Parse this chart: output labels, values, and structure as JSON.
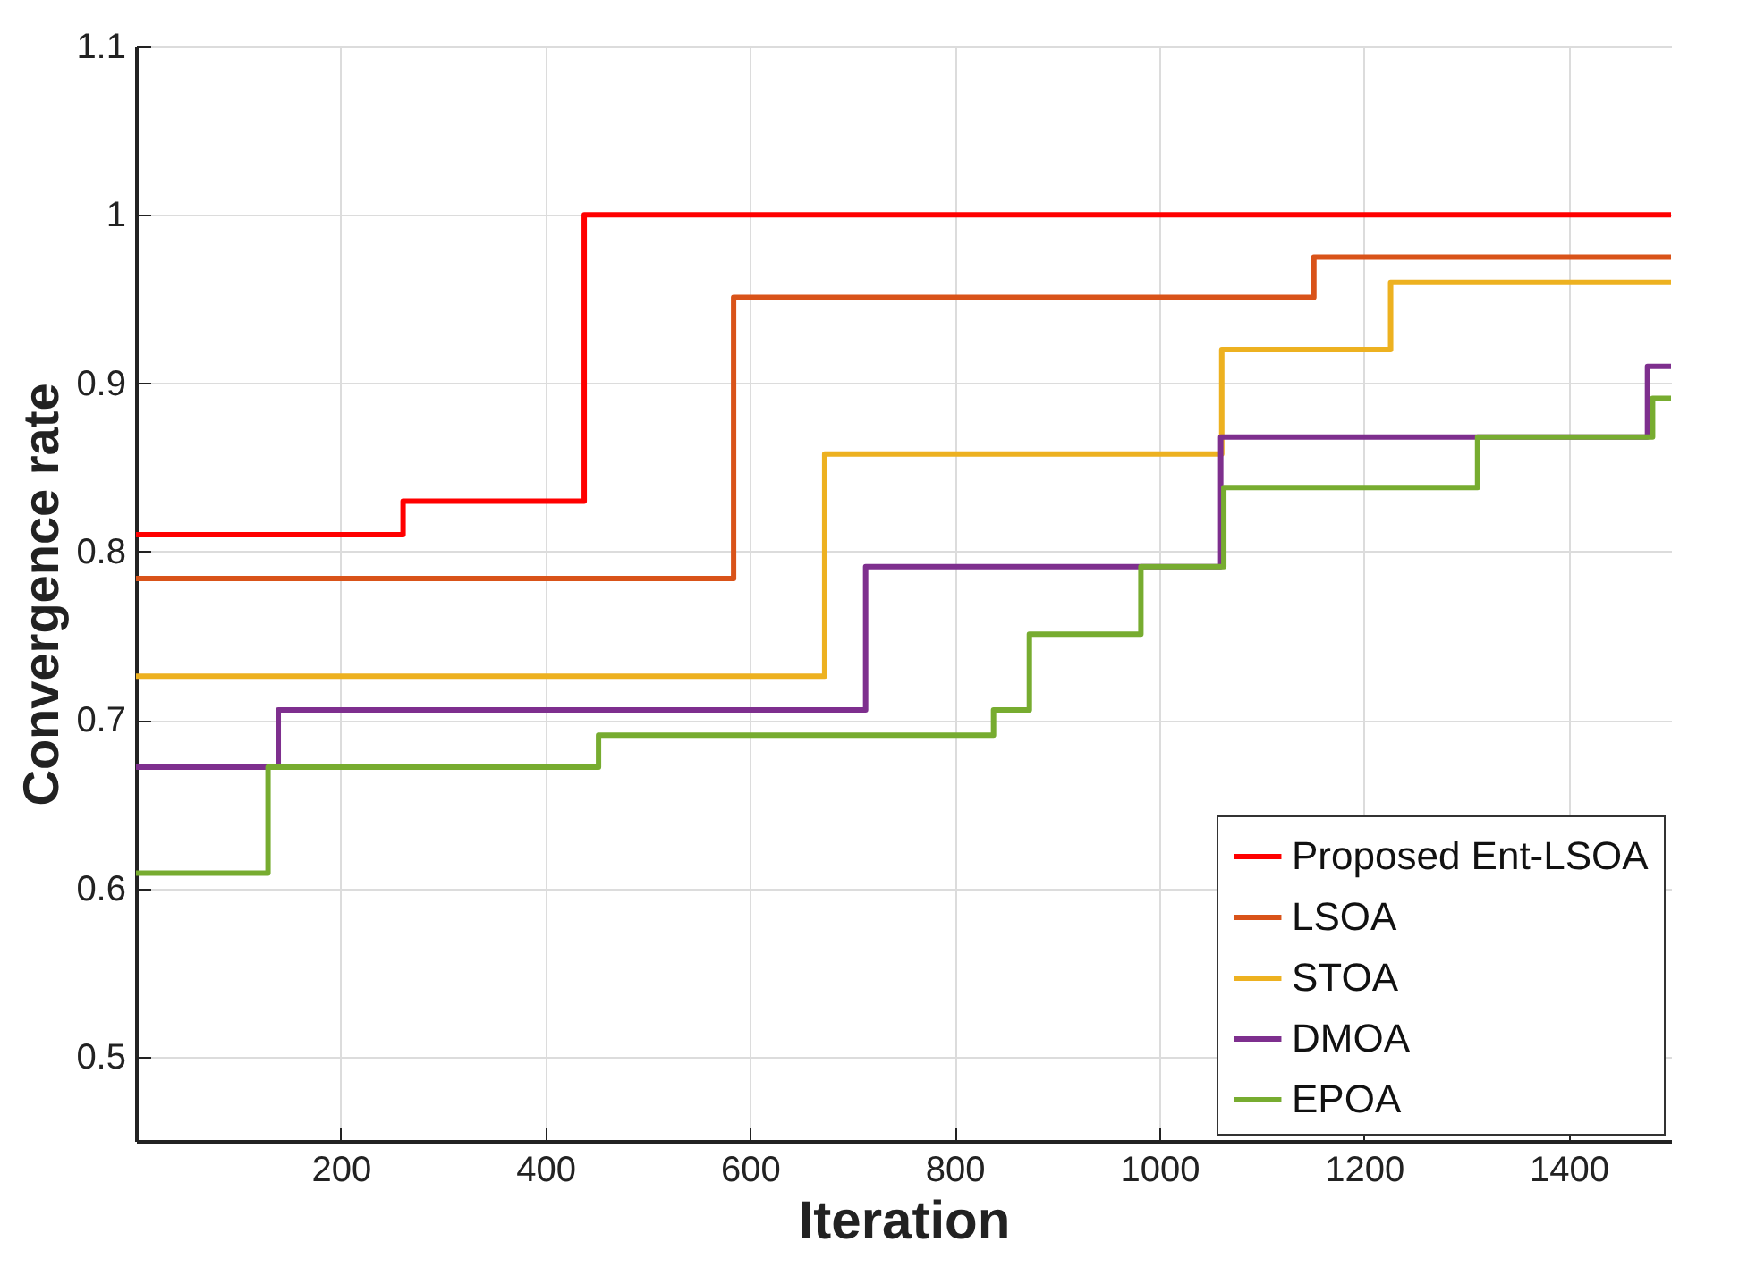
{
  "chart_data": {
    "type": "step",
    "xlabel": "Iteration",
    "ylabel": "Convergence rate",
    "xlim": [
      0,
      1500
    ],
    "ylim": [
      0.45,
      1.1
    ],
    "xticks": [
      200,
      400,
      600,
      800,
      1000,
      1200,
      1400
    ],
    "yticks": [
      0.5,
      0.6,
      0.7,
      0.8,
      0.9,
      1,
      1.1
    ],
    "grid": true,
    "legend": "bottom right",
    "line_style": "solid",
    "marker": "none",
    "series": [
      {
        "name": "Proposed Ent-LSOA",
        "color": "#ff0000",
        "x": [
          0,
          261,
          438,
          1500
        ],
        "values": [
          0.81,
          0.83,
          1.0,
          1.0
        ]
      },
      {
        "name": "LSOA",
        "color": "#d95319",
        "x": [
          0,
          584,
          1151,
          1500
        ],
        "values": [
          0.784,
          0.951,
          0.975,
          0.975
        ]
      },
      {
        "name": "STOA",
        "color": "#edb120",
        "x": [
          0,
          673,
          1061,
          1226,
          1500
        ],
        "values": [
          0.726,
          0.858,
          0.92,
          0.96,
          0.96
        ]
      },
      {
        "name": "DMOA",
        "color": "#7e2f8e",
        "x": [
          0,
          139,
          713,
          1060,
          1477,
          1500
        ],
        "values": [
          0.672,
          0.706,
          0.791,
          0.868,
          0.91,
          0.91
        ]
      },
      {
        "name": "EPOA",
        "color": "#77ac30",
        "x": [
          0,
          129,
          452,
          838,
          873,
          982,
          1063,
          1311,
          1482,
          1500
        ],
        "values": [
          0.609,
          0.672,
          0.691,
          0.706,
          0.751,
          0.791,
          0.838,
          0.868,
          0.891,
          0.891
        ]
      }
    ]
  }
}
